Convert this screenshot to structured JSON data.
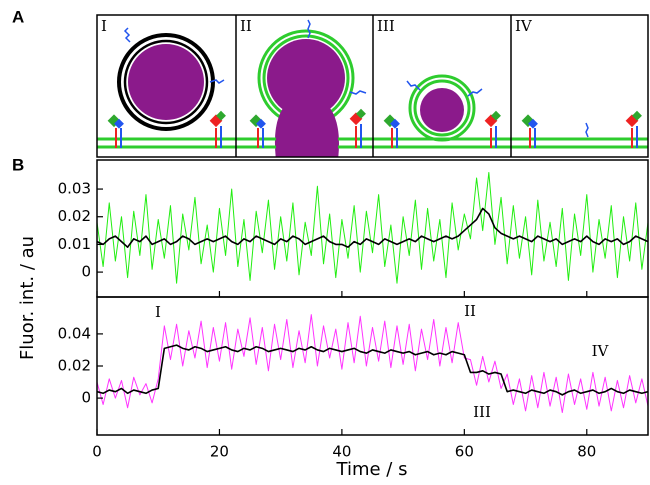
{
  "figure": {
    "panel_labels": [
      "A",
      "B"
    ],
    "diagram_labels": [
      "I",
      "II",
      "III",
      "IV"
    ]
  },
  "chart_data": [
    {
      "type": "line",
      "ylabel": "Fluor. int. / au",
      "x": [
        0,
        1,
        2,
        3,
        4,
        5,
        6,
        7,
        8,
        9,
        10,
        11,
        12,
        13,
        14,
        15,
        16,
        17,
        18,
        19,
        20,
        21,
        22,
        23,
        24,
        25,
        26,
        27,
        28,
        29,
        30,
        31,
        32,
        33,
        34,
        35,
        36,
        37,
        38,
        39,
        40,
        41,
        42,
        43,
        44,
        45,
        46,
        47,
        48,
        49,
        50,
        51,
        52,
        53,
        54,
        55,
        56,
        57,
        58,
        59,
        60,
        61,
        62,
        63,
        64,
        65,
        66,
        67,
        68,
        69,
        70,
        71,
        72,
        73,
        74,
        75,
        76,
        77,
        78,
        79,
        80,
        81,
        82,
        83,
        84,
        85,
        86,
        87,
        88,
        89,
        90
      ],
      "xlim": [
        0,
        90
      ],
      "xticks": [
        0,
        20,
        40,
        60,
        80
      ],
      "ylim": [
        -0.009,
        0.0405
      ],
      "yticks": [
        0,
        0.01,
        0.02,
        0.03
      ],
      "series": [
        {
          "color": "#22ee11",
          "values": [
            0.018,
            0.002,
            0.025,
            0.004,
            0.02,
            -0.002,
            0.022,
            0.006,
            0.028,
            0.001,
            0.019,
            0.005,
            0.024,
            -0.004,
            0.021,
            0.008,
            0.027,
            0.003,
            0.017,
            0.0,
            0.023,
            0.006,
            0.03,
            0.002,
            0.019,
            -0.003,
            0.022,
            0.007,
            0.026,
            0.001,
            0.02,
            0.004,
            0.025,
            -0.001,
            0.018,
            0.006,
            0.031,
            0.003,
            0.021,
            -0.002,
            0.019,
            0.005,
            0.024,
            0.0,
            0.022,
            0.007,
            0.028,
            0.002,
            0.017,
            -0.004,
            0.02,
            0.006,
            0.026,
            0.001,
            0.023,
            0.004,
            0.019,
            -0.002,
            0.025,
            0.008,
            0.021,
            0.012,
            0.034,
            0.015,
            0.036,
            0.01,
            0.027,
            0.003,
            0.024,
            0.005,
            0.02,
            -0.001,
            0.026,
            0.004,
            0.018,
            0.002,
            0.023,
            -0.003,
            0.021,
            0.006,
            0.028,
            0.0,
            0.019,
            0.005,
            0.024,
            -0.002,
            0.02,
            0.004,
            0.025,
            0.001,
            0.018
          ]
        },
        {
          "color": "#000000",
          "values": [
            0.011,
            0.01,
            0.012,
            0.013,
            0.011,
            0.009,
            0.012,
            0.011,
            0.013,
            0.01,
            0.011,
            0.012,
            0.01,
            0.011,
            0.013,
            0.012,
            0.01,
            0.011,
            0.012,
            0.011,
            0.012,
            0.013,
            0.011,
            0.01,
            0.012,
            0.011,
            0.013,
            0.012,
            0.011,
            0.01,
            0.012,
            0.011,
            0.013,
            0.012,
            0.01,
            0.011,
            0.012,
            0.013,
            0.011,
            0.01,
            0.01,
            0.009,
            0.011,
            0.01,
            0.012,
            0.011,
            0.01,
            0.012,
            0.011,
            0.01,
            0.011,
            0.012,
            0.011,
            0.013,
            0.012,
            0.011,
            0.012,
            0.013,
            0.012,
            0.013,
            0.015,
            0.017,
            0.019,
            0.023,
            0.021,
            0.016,
            0.014,
            0.013,
            0.012,
            0.013,
            0.012,
            0.011,
            0.013,
            0.012,
            0.011,
            0.012,
            0.01,
            0.011,
            0.012,
            0.011,
            0.013,
            0.011,
            0.01,
            0.012,
            0.011,
            0.012,
            0.01,
            0.011,
            0.013,
            0.012,
            0.011
          ]
        }
      ]
    },
    {
      "type": "line",
      "xlabel": "Time / s",
      "x": [
        0,
        1,
        2,
        3,
        4,
        5,
        6,
        7,
        8,
        9,
        10,
        11,
        12,
        13,
        14,
        15,
        16,
        17,
        18,
        19,
        20,
        21,
        22,
        23,
        24,
        25,
        26,
        27,
        28,
        29,
        30,
        31,
        32,
        33,
        34,
        35,
        36,
        37,
        38,
        39,
        40,
        41,
        42,
        43,
        44,
        45,
        46,
        47,
        48,
        49,
        50,
        51,
        52,
        53,
        54,
        55,
        56,
        57,
        58,
        59,
        60,
        61,
        62,
        63,
        64,
        65,
        66,
        67,
        68,
        69,
        70,
        71,
        72,
        73,
        74,
        75,
        76,
        77,
        78,
        79,
        80,
        81,
        82,
        83,
        84,
        85,
        86,
        87,
        88,
        89,
        90
      ],
      "xlim": [
        0,
        90
      ],
      "xticks": [
        0,
        20,
        40,
        60,
        80
      ],
      "ylim": [
        -0.023,
        0.063
      ],
      "yticks": [
        0,
        0.02,
        0.04
      ],
      "annotations": [
        "I",
        "II",
        "III",
        "IV"
      ],
      "series": [
        {
          "color": "#ff33ff",
          "values": [
            0.01,
            -0.004,
            0.012,
            0.0,
            0.011,
            -0.006,
            0.013,
            0.002,
            0.009,
            -0.003,
            0.012,
            0.045,
            0.024,
            0.046,
            0.02,
            0.042,
            0.025,
            0.048,
            0.019,
            0.044,
            0.023,
            0.047,
            0.018,
            0.043,
            0.026,
            0.05,
            0.021,
            0.044,
            0.017,
            0.046,
            0.024,
            0.049,
            0.019,
            0.042,
            0.022,
            0.052,
            0.02,
            0.045,
            0.025,
            0.043,
            0.018,
            0.047,
            0.022,
            0.051,
            0.02,
            0.044,
            0.023,
            0.048,
            0.019,
            0.045,
            0.021,
            0.046,
            0.017,
            0.043,
            0.024,
            0.049,
            0.02,
            0.044,
            0.022,
            0.047,
            0.025,
            0.024,
            0.008,
            0.026,
            0.01,
            0.023,
            0.006,
            0.015,
            -0.004,
            0.012,
            -0.008,
            0.014,
            -0.006,
            0.016,
            -0.005,
            0.013,
            -0.009,
            0.015,
            -0.004,
            0.012,
            -0.007,
            0.016,
            -0.005,
            0.013,
            -0.008,
            0.011,
            -0.006,
            0.014,
            -0.003,
            0.012,
            -0.005
          ]
        },
        {
          "color": "#000000",
          "values": [
            0.004,
            0.003,
            0.005,
            0.004,
            0.006,
            0.003,
            0.005,
            0.004,
            0.003,
            0.005,
            0.006,
            0.031,
            0.032,
            0.033,
            0.031,
            0.03,
            0.032,
            0.031,
            0.029,
            0.03,
            0.031,
            0.032,
            0.03,
            0.029,
            0.031,
            0.03,
            0.032,
            0.031,
            0.029,
            0.03,
            0.031,
            0.03,
            0.029,
            0.031,
            0.03,
            0.032,
            0.03,
            0.029,
            0.031,
            0.03,
            0.029,
            0.03,
            0.031,
            0.029,
            0.028,
            0.03,
            0.029,
            0.028,
            0.03,
            0.029,
            0.028,
            0.029,
            0.027,
            0.028,
            0.029,
            0.027,
            0.028,
            0.027,
            0.029,
            0.028,
            0.027,
            0.016,
            0.016,
            0.017,
            0.015,
            0.016,
            0.015,
            0.004,
            0.005,
            0.004,
            0.003,
            0.005,
            0.004,
            0.003,
            0.005,
            0.004,
            0.002,
            0.004,
            0.005,
            0.003,
            0.004,
            0.005,
            0.003,
            0.004,
            0.006,
            0.004,
            0.003,
            0.005,
            0.004,
            0.003,
            0.004
          ]
        }
      ]
    }
  ]
}
